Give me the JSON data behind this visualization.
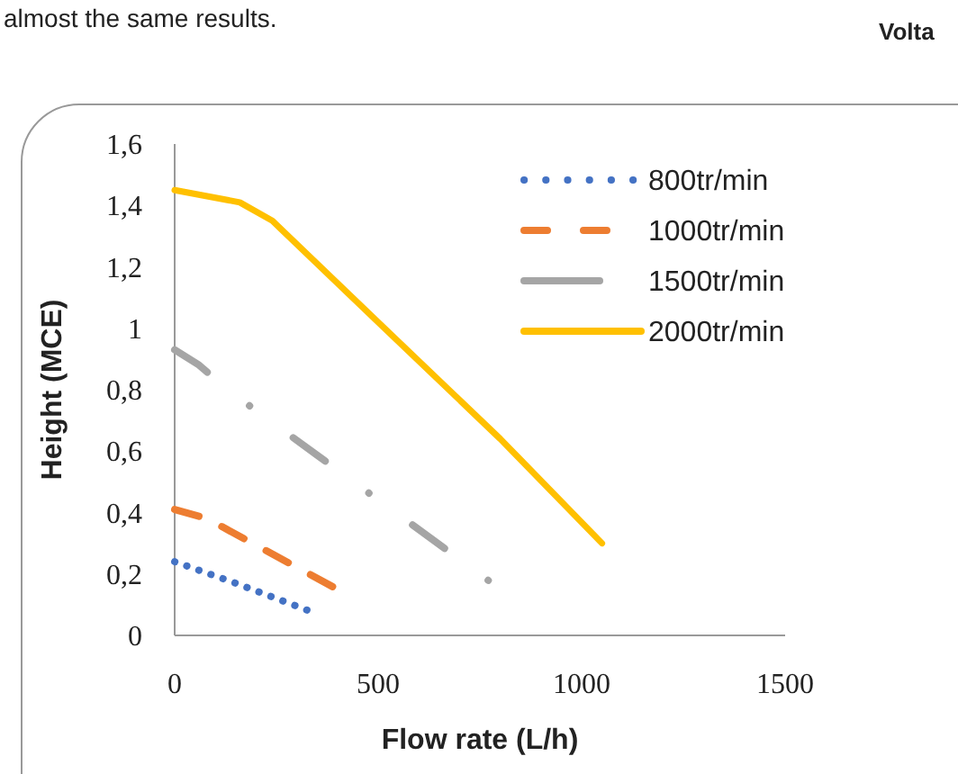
{
  "chart_data": {
    "type": "line",
    "xlabel": "Flow rate (L/h)",
    "ylabel": "Height (MCE)",
    "annotations": [
      "almost the same results.",
      "Volta"
    ],
    "xlim": [
      0,
      1500
    ],
    "xticks": [
      0,
      500,
      1000,
      1500
    ],
    "ylim": [
      0,
      1.6
    ],
    "yticks": [
      0,
      {
        "value": 0.2,
        "label": "0,2"
      },
      {
        "value": 0.4,
        "label": "0,4"
      },
      {
        "value": 0.6,
        "label": "0,6"
      },
      {
        "value": 0.8,
        "label": "0,8"
      },
      1,
      {
        "value": 1.2,
        "label": "1,2"
      },
      {
        "value": 1.4,
        "label": "1,4"
      },
      {
        "value": 1.6,
        "label": "1,6"
      }
    ],
    "grid": false,
    "legend": "top right",
    "series": [
      {
        "name": "800tr/min",
        "color": "#4472c4",
        "line_style": "dotted",
        "x": [
          0,
          150,
          350
        ],
        "values": [
          0.24,
          0.17,
          0.07
        ]
      },
      {
        "name": "1000tr/min",
        "color": "#ed7d31",
        "line_style": "dashed",
        "x": [
          0,
          80,
          400
        ],
        "values": [
          0.41,
          0.38,
          0.15
        ]
      },
      {
        "name": "1500tr/min",
        "color": "#a5a5a5",
        "line_style": "dashdot",
        "x": [
          0,
          60,
          130,
          780
        ],
        "values": [
          0.93,
          0.88,
          0.8,
          0.17
        ]
      },
      {
        "name": "2000tr/min",
        "color": "#ffc000",
        "line_style": "solid",
        "x": [
          0,
          160,
          240,
          500,
          800,
          1050
        ],
        "values": [
          1.45,
          1.41,
          1.35,
          1.02,
          0.64,
          0.3
        ]
      }
    ]
  }
}
